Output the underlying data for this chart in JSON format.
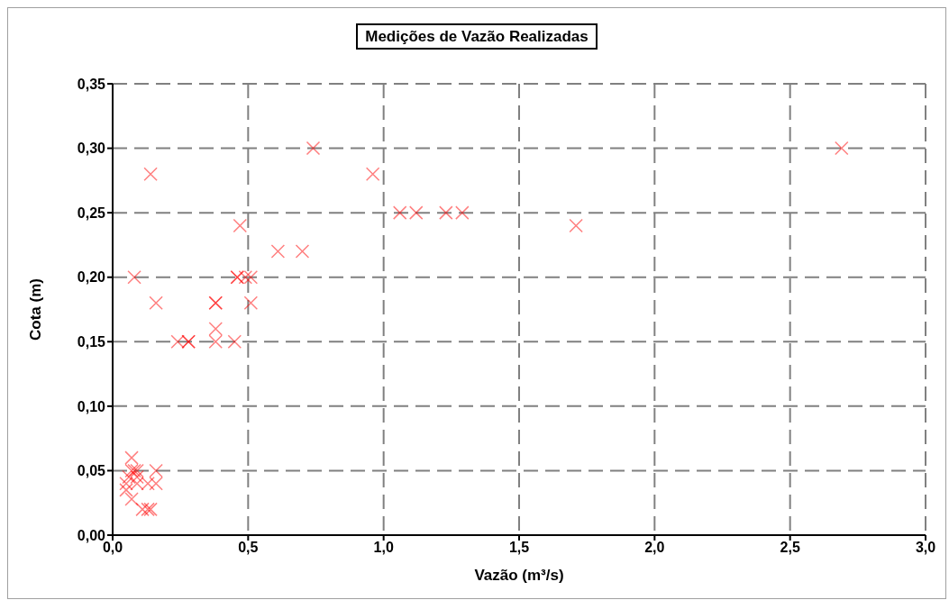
{
  "chart_data": {
    "type": "scatter",
    "title": "Medições de Vazão Realizadas",
    "xlabel": "Vazão (m³/s)",
    "ylabel": "Cota (m)",
    "x": [
      0.14,
      0.74,
      0.96,
      2.69,
      1.06,
      1.12,
      1.23,
      1.29,
      1.71,
      0.47,
      0.61,
      0.7,
      0.08,
      0.46,
      0.46,
      0.49,
      0.51,
      0.16,
      0.38,
      0.38,
      0.51,
      0.38,
      0.24,
      0.28,
      0.28,
      0.38,
      0.45,
      0.07,
      0.07,
      0.08,
      0.09,
      0.16,
      0.06,
      0.09,
      0.05,
      0.09,
      0.13,
      0.16,
      0.05,
      0.07,
      0.11,
      0.13,
      0.14
    ],
    "series": [
      {
        "color": "#ff0000",
        "values": [
          0.28,
          0.3,
          0.28,
          0.3,
          0.25,
          0.25,
          0.25,
          0.25,
          0.24,
          0.24,
          0.22,
          0.22,
          0.2,
          0.2,
          0.2,
          0.2,
          0.2,
          0.18,
          0.18,
          0.18,
          0.18,
          0.16,
          0.15,
          0.15,
          0.15,
          0.15,
          0.15,
          0.06,
          0.05,
          0.05,
          0.05,
          0.05,
          0.045,
          0.045,
          0.04,
          0.04,
          0.04,
          0.04,
          0.035,
          0.028,
          0.02,
          0.02,
          0.02
        ]
      }
    ],
    "xlim": [
      0,
      3
    ],
    "xticks": [
      {
        "value": 0,
        "label": "0,0"
      },
      {
        "value": 0.5,
        "label": "0,5"
      },
      {
        "value": 1,
        "label": "1,0"
      },
      {
        "value": 1.5,
        "label": "1,5"
      },
      {
        "value": 2,
        "label": "2,0"
      },
      {
        "value": 2.5,
        "label": "2,5"
      },
      {
        "value": 3,
        "label": "3,0"
      }
    ],
    "ylim": [
      0,
      0.35
    ],
    "yticks": [
      {
        "value": 0,
        "label": "0,00"
      },
      {
        "value": 0.05,
        "label": "0,05"
      },
      {
        "value": 0.1,
        "label": "0,10"
      },
      {
        "value": 0.15,
        "label": "0,15"
      },
      {
        "value": 0.2,
        "label": "0,20"
      },
      {
        "value": 0.25,
        "label": "0,25"
      },
      {
        "value": 0.3,
        "label": "0,30"
      },
      {
        "value": 0.35,
        "label": "0,35"
      }
    ],
    "grid": true,
    "marker": "cross",
    "legend": false
  }
}
